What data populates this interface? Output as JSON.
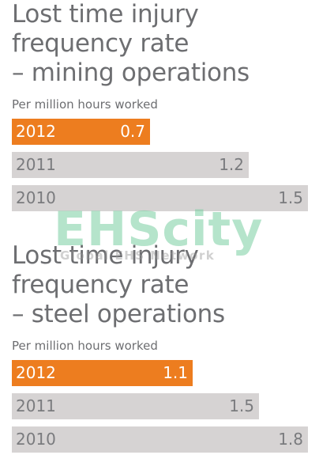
{
  "colors": {
    "highlight": "#ed7d1f",
    "muted": "#d6d3d3",
    "text": "#6d6e71"
  },
  "watermark": {
    "main": "EHScity",
    "sub": "Global EHS Network"
  },
  "chart_data": [
    {
      "type": "bar",
      "orientation": "horizontal",
      "title": "Lost time injury\nfrequency rate\n– mining operations",
      "subtitle": "Per million hours worked",
      "categories": [
        "2012",
        "2011",
        "2010"
      ],
      "values": [
        0.7,
        1.2,
        1.5
      ],
      "value_labels": [
        "0.7",
        "1.2",
        "1.5"
      ],
      "highlight_index": 0,
      "xlim": [
        0,
        1.5
      ]
    },
    {
      "type": "bar",
      "orientation": "horizontal",
      "title": "Lost time injury\nfrequency rate\n– steel operations",
      "subtitle": "Per million hours worked",
      "categories": [
        "2012",
        "2011",
        "2010"
      ],
      "values": [
        1.1,
        1.5,
        1.8
      ],
      "value_labels": [
        "1.1",
        "1.5",
        "1.8"
      ],
      "highlight_index": 0,
      "xlim": [
        0,
        1.8
      ]
    }
  ]
}
